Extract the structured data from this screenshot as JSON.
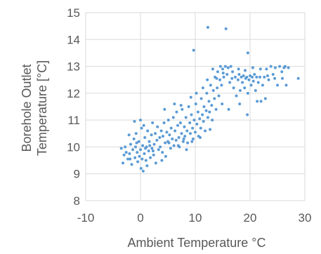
{
  "chart_data": {
    "type": "scatter",
    "title": "",
    "xlabel": "Ambient Temperature °C",
    "ylabel_lines": [
      "Borehole Outlet",
      "Temperature [°C]"
    ],
    "xlim": [
      -10,
      30
    ],
    "ylim": [
      8,
      15
    ],
    "xticks": [
      -10,
      0,
      10,
      20,
      30
    ],
    "yticks": [
      8,
      9,
      10,
      11,
      12,
      13,
      14,
      15
    ],
    "grid": true,
    "marker_color": "#5b9bd5",
    "series": [
      {
        "points": [
          [
            -3.5,
            9.95
          ],
          [
            -3.2,
            9.4
          ],
          [
            -3.0,
            9.7
          ],
          [
            -2.8,
            10.0
          ],
          [
            -2.6,
            9.8
          ],
          [
            -2.3,
            9.55
          ],
          [
            -2.0,
            9.75
          ],
          [
            -1.8,
            10.1
          ],
          [
            -1.6,
            9.35
          ],
          [
            -1.4,
            9.9
          ],
          [
            -1.2,
            10.3
          ],
          [
            -1.0,
            9.6
          ],
          [
            -0.9,
            10.0
          ],
          [
            -0.8,
            10.5
          ],
          [
            -0.6,
            9.8
          ],
          [
            -0.5,
            9.45
          ],
          [
            -0.3,
            10.2
          ],
          [
            -0.2,
            9.65
          ],
          [
            0.0,
            9.9
          ],
          [
            0.1,
            9.2
          ],
          [
            0.2,
            10.7
          ],
          [
            0.3,
            9.55
          ],
          [
            0.4,
            10.05
          ],
          [
            0.5,
            9.1
          ],
          [
            0.6,
            10.8
          ],
          [
            0.7,
            9.75
          ],
          [
            0.8,
            10.35
          ],
          [
            1.0,
            9.5
          ],
          [
            1.1,
            10.0
          ],
          [
            1.2,
            9.3
          ],
          [
            1.3,
            10.6
          ],
          [
            1.5,
            9.85
          ],
          [
            1.6,
            10.2
          ],
          [
            1.8,
            9.6
          ],
          [
            2.0,
            10.45
          ],
          [
            2.1,
            9.95
          ],
          [
            2.2,
            10.9
          ],
          [
            2.4,
            9.7
          ],
          [
            2.5,
            10.1
          ],
          [
            2.7,
            10.5
          ],
          [
            2.8,
            9.4
          ],
          [
            3.0,
            10.25
          ],
          [
            3.1,
            10.75
          ],
          [
            3.3,
            9.9
          ],
          [
            3.5,
            10.35
          ],
          [
            3.6,
            10.0
          ],
          [
            3.8,
            10.6
          ],
          [
            4.0,
            9.8
          ],
          [
            4.1,
            10.4
          ],
          [
            4.3,
            10.9
          ],
          [
            4.5,
            10.15
          ],
          [
            4.6,
            9.65
          ],
          [
            4.8,
            10.55
          ],
          [
            5.0,
            10.2
          ],
          [
            5.1,
            11.0
          ],
          [
            5.3,
            10.45
          ],
          [
            5.5,
            9.95
          ],
          [
            5.6,
            10.7
          ],
          [
            5.8,
            10.3
          ],
          [
            6.0,
            11.1
          ],
          [
            6.1,
            10.05
          ],
          [
            6.3,
            10.6
          ],
          [
            6.5,
            10.25
          ],
          [
            6.6,
            11.3
          ],
          [
            6.8,
            10.8
          ],
          [
            7.0,
            10.35
          ],
          [
            7.1,
            10.0
          ],
          [
            7.3,
            10.9
          ],
          [
            7.5,
            10.5
          ],
          [
            7.6,
            11.4
          ],
          [
            7.8,
            10.2
          ],
          [
            8.0,
            10.75
          ],
          [
            8.1,
            10.4
          ],
          [
            8.3,
            11.1
          ],
          [
            8.5,
            10.6
          ],
          [
            8.6,
            10.15
          ],
          [
            8.8,
            11.5
          ],
          [
            9.0,
            10.9
          ],
          [
            9.1,
            10.5
          ],
          [
            9.3,
            11.2
          ],
          [
            9.5,
            10.7
          ],
          [
            9.6,
            10.3
          ],
          [
            9.8,
            11.0
          ],
          [
            10.0,
            10.55
          ],
          [
            10.1,
            11.6
          ],
          [
            10.3,
            10.85
          ],
          [
            10.5,
            11.3
          ],
          [
            10.6,
            10.4
          ],
          [
            10.8,
            11.05
          ],
          [
            11.0,
            10.7
          ],
          [
            11.1,
            11.8
          ],
          [
            11.3,
            11.2
          ],
          [
            11.5,
            10.95
          ],
          [
            11.6,
            11.5
          ],
          [
            11.8,
            10.6
          ],
          [
            12.0,
            11.35
          ],
          [
            12.1,
            12.0
          ],
          [
            12.3,
            11.1
          ],
          [
            12.5,
            11.7
          ],
          [
            12.6,
            11.3
          ],
          [
            12.8,
            12.3
          ],
          [
            13.0,
            11.55
          ],
          [
            13.1,
            11.0
          ],
          [
            13.3,
            12.1
          ],
          [
            13.5,
            11.8
          ],
          [
            13.6,
            12.6
          ],
          [
            13.8,
            11.4
          ],
          [
            14.0,
            12.2
          ],
          [
            14.1,
            12.8
          ],
          [
            14.3,
            11.9
          ],
          [
            14.5,
            12.5
          ],
          [
            14.6,
            13.0
          ],
          [
            14.8,
            12.3
          ],
          [
            15.0,
            12.9
          ],
          [
            15.2,
            12.6
          ],
          [
            15.5,
            13.0
          ],
          [
            15.8,
            12.7
          ],
          [
            16.0,
            12.95
          ],
          [
            16.3,
            12.4
          ],
          [
            16.5,
            13.0
          ],
          [
            16.8,
            12.8
          ],
          [
            17.0,
            12.2
          ],
          [
            17.3,
            12.6
          ],
          [
            17.5,
            11.9
          ],
          [
            17.8,
            12.5
          ],
          [
            18.0,
            12.7
          ],
          [
            18.2,
            12.1
          ],
          [
            18.4,
            12.6
          ],
          [
            18.6,
            12.4
          ],
          [
            18.8,
            12.65
          ],
          [
            19.0,
            12.2
          ],
          [
            19.2,
            12.55
          ],
          [
            19.4,
            12.6
          ],
          [
            19.6,
            12.0
          ],
          [
            19.8,
            12.5
          ],
          [
            20.0,
            12.65
          ],
          [
            20.2,
            12.3
          ],
          [
            20.4,
            12.6
          ],
          [
            20.6,
            12.45
          ],
          [
            20.8,
            12.7
          ],
          [
            21.0,
            12.1
          ],
          [
            21.2,
            12.6
          ],
          [
            21.5,
            12.4
          ],
          [
            21.8,
            12.6
          ],
          [
            22.0,
            11.7
          ],
          [
            22.3,
            12.3
          ],
          [
            22.6,
            12.6
          ],
          [
            23.0,
            12.9
          ],
          [
            23.4,
            12.5
          ],
          [
            23.8,
            13.0
          ],
          [
            24.2,
            12.7
          ],
          [
            24.6,
            12.95
          ],
          [
            25.0,
            12.3
          ],
          [
            25.4,
            13.0
          ],
          [
            25.8,
            12.8
          ],
          [
            26.2,
            12.95
          ],
          [
            26.6,
            12.3
          ],
          [
            27.0,
            12.95
          ],
          [
            28.8,
            12.55
          ],
          [
            5.2,
            10.15
          ],
          [
            6.9,
            10.05
          ],
          [
            7.9,
            10.3
          ],
          [
            9.4,
            10.2
          ],
          [
            8.4,
            9.9
          ],
          [
            10.9,
            10.35
          ],
          [
            12.7,
            10.65
          ],
          [
            14.9,
            11.6
          ],
          [
            16.1,
            11.4
          ],
          [
            18.1,
            11.6
          ],
          [
            19.5,
            11.2
          ],
          [
            21.3,
            11.7
          ],
          [
            22.8,
            11.8
          ],
          [
            3.9,
            9.5
          ],
          [
            2.3,
            9.85
          ],
          [
            1.7,
            10.05
          ],
          [
            0.9,
            9.95
          ],
          [
            -0.7,
            10.15
          ],
          [
            -2.1,
            10.45
          ],
          [
            -1.9,
            9.55
          ],
          [
            4.4,
            11.4
          ],
          [
            6.2,
            11.6
          ],
          [
            7.4,
            11.55
          ],
          [
            9.2,
            11.85
          ],
          [
            10.2,
            12.0
          ],
          [
            11.4,
            12.2
          ],
          [
            12.2,
            12.5
          ],
          [
            13.2,
            12.9
          ],
          [
            13.9,
            12.55
          ],
          [
            15.1,
            12.75
          ],
          [
            16.7,
            12.55
          ],
          [
            17.9,
            12.9
          ],
          [
            19.1,
            12.85
          ],
          [
            20.5,
            12.95
          ],
          [
            21.9,
            12.9
          ],
          [
            23.2,
            12.65
          ],
          [
            24.5,
            12.55
          ],
          [
            25.9,
            12.55
          ],
          [
            26.4,
            13.0
          ],
          [
            9.7,
            13.6
          ],
          [
            12.3,
            14.45
          ],
          [
            15.6,
            14.4
          ],
          [
            19.6,
            13.5
          ],
          [
            -1.1,
            10.95
          ],
          [
            0.0,
            11.0
          ]
        ]
      }
    ]
  }
}
